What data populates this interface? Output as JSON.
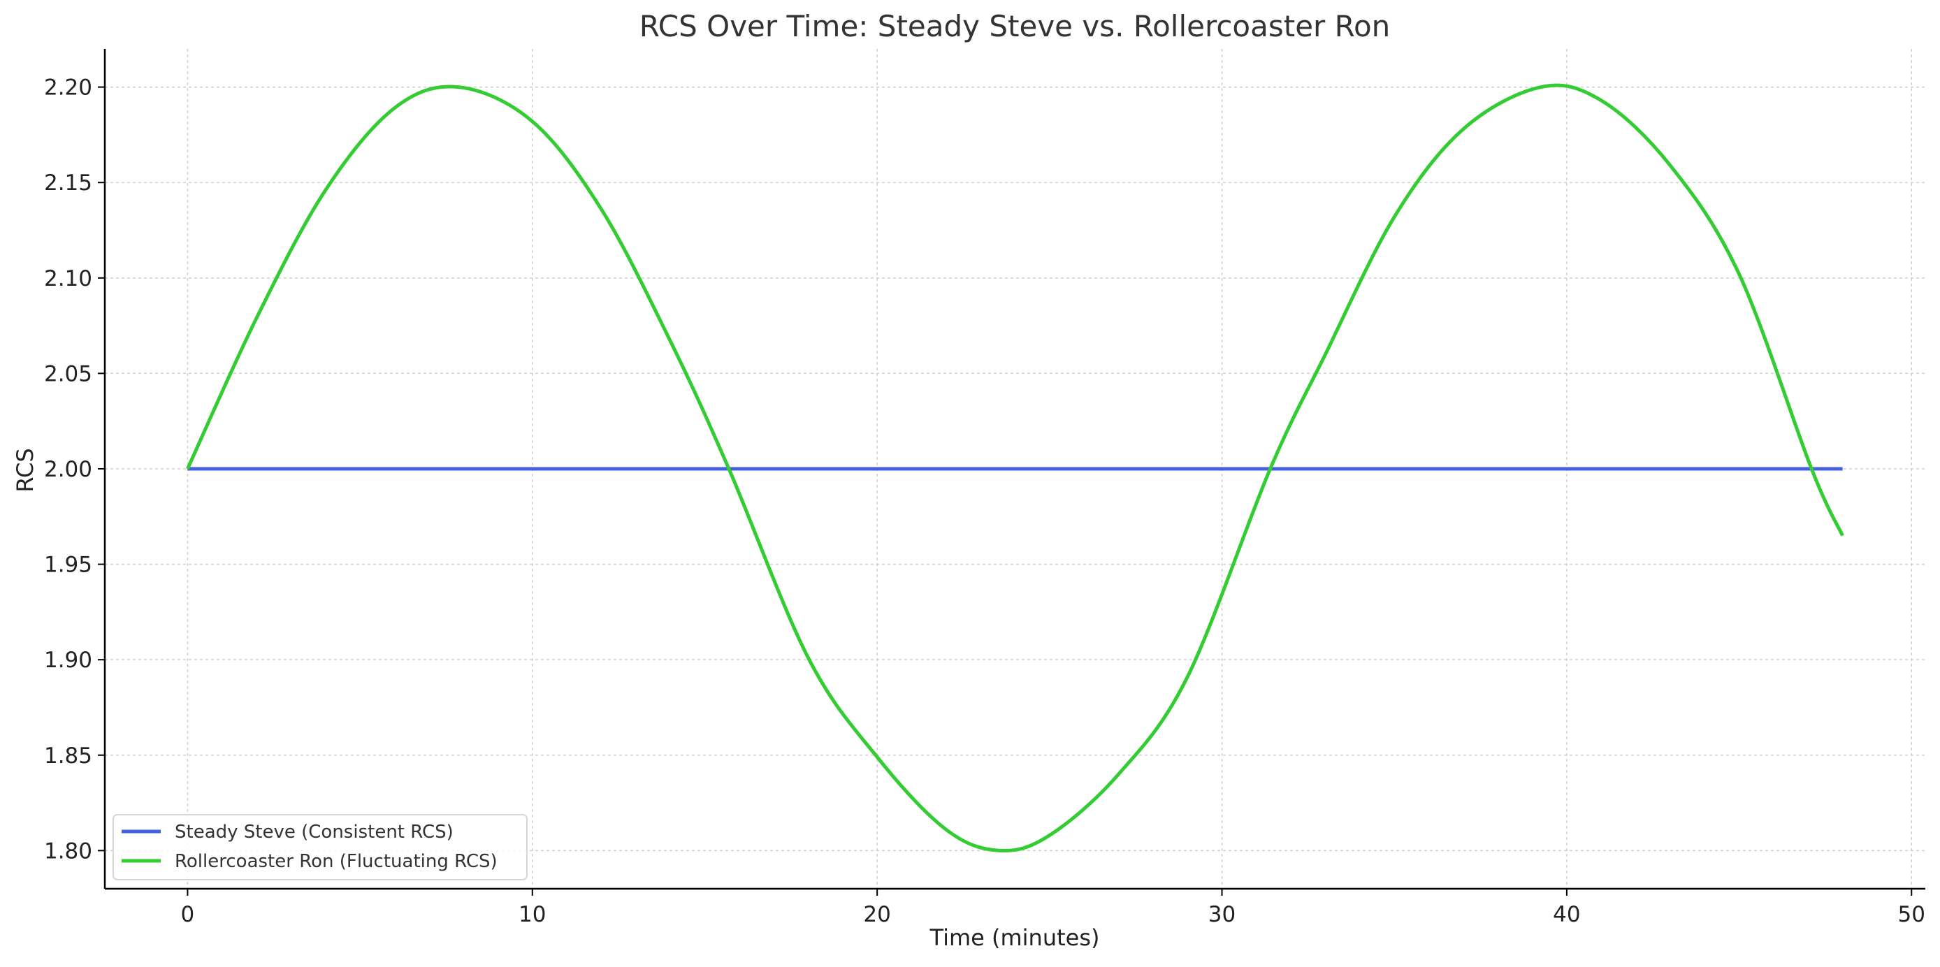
{
  "colors": {
    "steady": "#4361dd",
    "ron": "#33cc33",
    "axis": "#000000",
    "grid": "#cfcfcf"
  },
  "chart_data": {
    "type": "line",
    "title": "RCS Over Time: Steady Steve vs. Rollercoaster Ron",
    "xlabel": "Time (minutes)",
    "ylabel": "RCS",
    "xlim": [
      -2.4,
      50.4
    ],
    "ylim": [
      1.78,
      2.22
    ],
    "x_ticks": [
      0,
      10,
      20,
      30,
      40,
      50
    ],
    "x_tick_labels": [
      "0",
      "10",
      "20",
      "30",
      "40",
      "50"
    ],
    "y_ticks": [
      1.8,
      1.85,
      1.9,
      1.95,
      2.0,
      2.05,
      2.1,
      2.15,
      2.2
    ],
    "y_tick_labels": [
      "1.80",
      "1.85",
      "1.90",
      "1.95",
      "2.00",
      "2.05",
      "2.10",
      "2.15",
      "2.20"
    ],
    "grid": true,
    "legend_position": "bottom-left",
    "series": [
      {
        "name": "Steady Steve (Consistent RCS)",
        "color": "#4361dd",
        "x": [
          0,
          48
        ],
        "y": [
          2.0,
          2.0
        ]
      },
      {
        "name": "Rollercoaster Ron (Fluctuating RCS)",
        "color": "#33cc33",
        "x": [
          0,
          2,
          4,
          6,
          7.85,
          10,
          12,
          14,
          15.7,
          18,
          20,
          22,
          23.55,
          25,
          27,
          29,
          31.4,
          33,
          35,
          37,
          39.25,
          41,
          43,
          45,
          47.1,
          48
        ],
        "y": [
          2.0,
          2.079,
          2.146,
          2.189,
          2.2,
          2.182,
          2.136,
          2.067,
          2.0,
          1.901,
          1.849,
          1.811,
          1.8,
          1.808,
          1.84,
          1.891,
          2.0,
          2.06,
          2.132,
          2.178,
          2.2,
          2.193,
          2.159,
          2.102,
          2.0,
          1.965
        ]
      }
    ]
  }
}
